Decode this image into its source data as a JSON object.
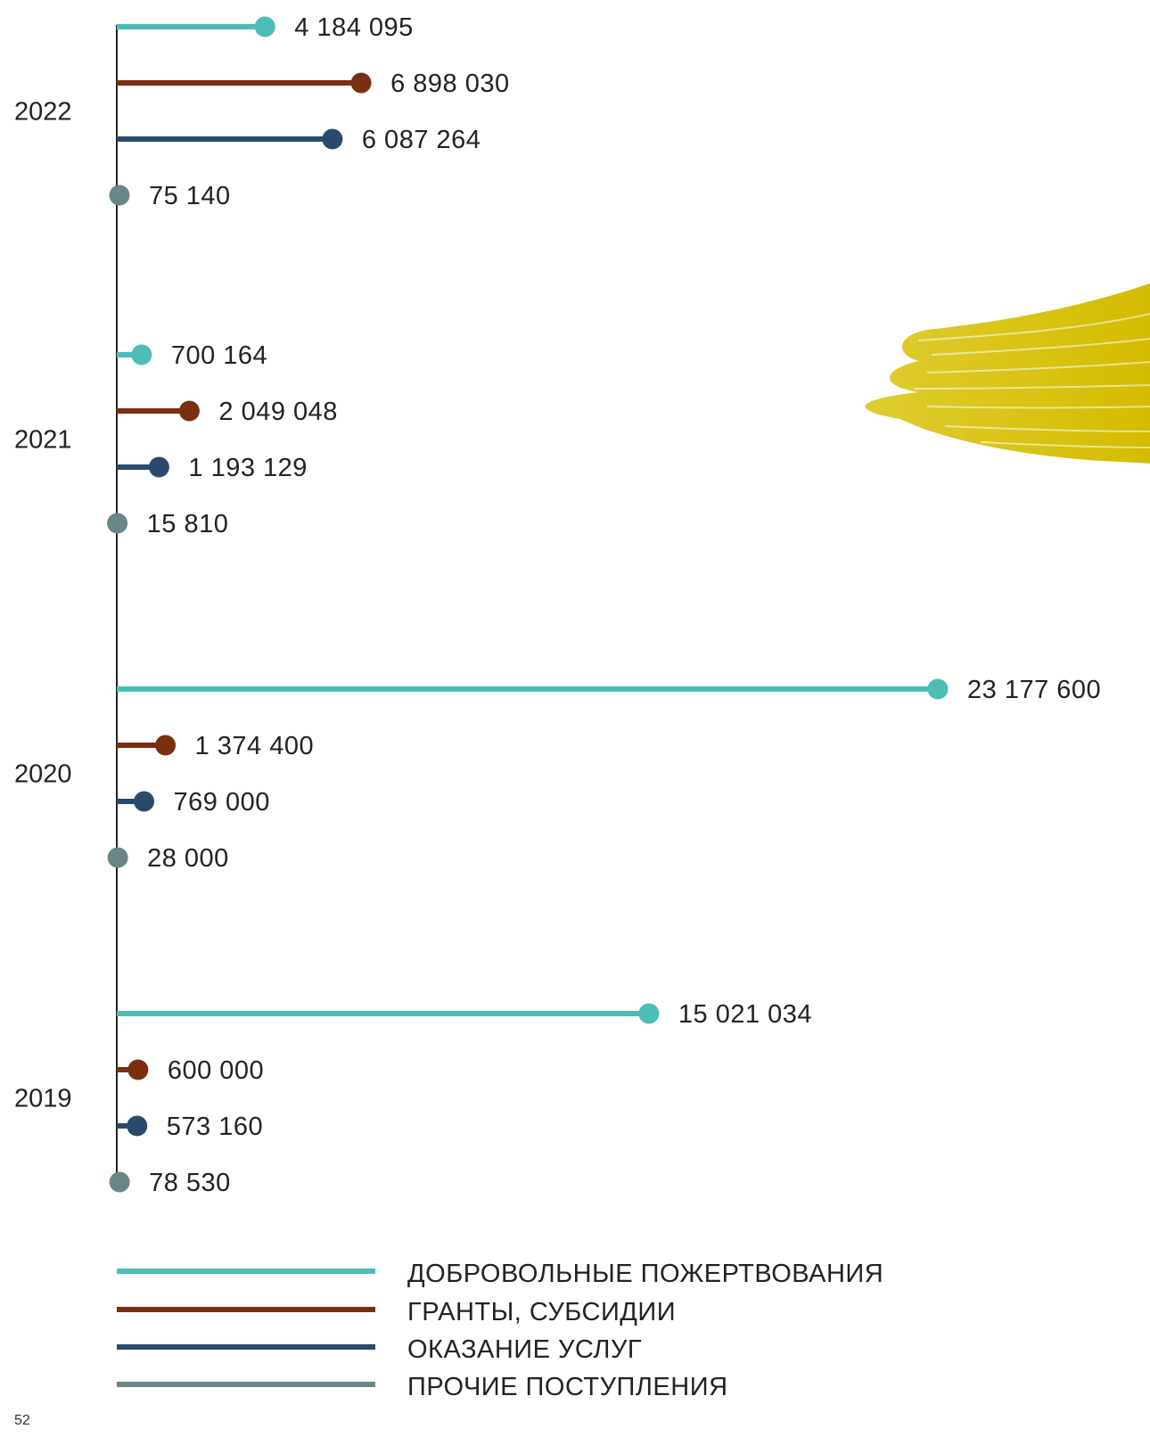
{
  "page_number": "52",
  "chart_data": {
    "type": "bar",
    "orientation": "horizontal",
    "style": "lollipop",
    "categories": [
      "2022",
      "2021",
      "2020",
      "2019"
    ],
    "series": [
      {
        "name": "ДОБРОВОЛЬНЫЕ ПОЖЕРТВОВАНИЯ",
        "color": "#4dbdb5",
        "values": [
          4184095,
          700164,
          23177600,
          15021034
        ],
        "labels": [
          "4 184 095",
          "700 164",
          "23 177 600",
          "15 021 034"
        ]
      },
      {
        "name": "ГРАНТЫ, СУБСИДИИ",
        "color": "#7a3010",
        "values": [
          6898030,
          2049048,
          1374400,
          600000
        ],
        "labels": [
          "6 898 030",
          "2 049 048",
          "1 374 400",
          "600 000"
        ]
      },
      {
        "name": "ОКАЗАНИЕ УСЛУГ",
        "color": "#2b4a6b",
        "values": [
          6087264,
          1193129,
          769000,
          573160
        ],
        "labels": [
          "6 087 264",
          "1 193 129",
          "769 000",
          "573 160"
        ]
      },
      {
        "name": "ПРОЧИЕ ПОСТУПЛЕНИЯ",
        "color": "#6a8585",
        "values": [
          75140,
          15810,
          28000,
          78530
        ],
        "labels": [
          "75 140",
          "15 810",
          "28 000",
          "78 530"
        ]
      }
    ],
    "legend_position": "bottom",
    "grid": false,
    "title": "",
    "xlabel": "",
    "ylabel": ""
  }
}
